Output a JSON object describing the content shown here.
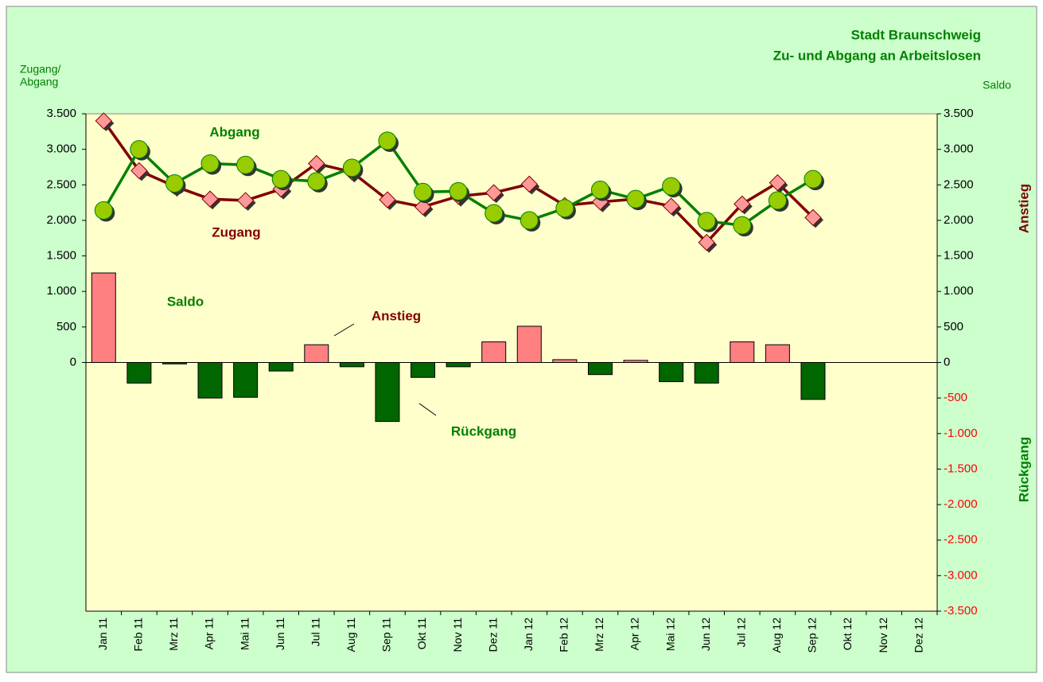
{
  "chart_data": {
    "type": "bar-line",
    "title": [
      "Stadt Braunschweig",
      "Zu- und Abgang an Arbeitslosen"
    ],
    "y_label": [
      "Zugang/",
      "Abgang"
    ],
    "y2_label": "Saldo",
    "categories": [
      "Jan 11",
      "Feb 11",
      "Mrz 11",
      "Apr 11",
      "Mai 11",
      "Jun 11",
      "Jul 11",
      "Aug 11",
      "Sep 11",
      "Okt 11",
      "Nov 11",
      "Dez 11",
      "Jan 12",
      "Feb 12",
      "Mrz 12",
      "Apr 12",
      "Mai 12",
      "Jun 12",
      "Jul 12",
      "Aug 12",
      "Sep 12",
      "Okt 12",
      "Nov 12",
      "Dez 12"
    ],
    "series": [
      {
        "name": "Zugang",
        "type": "line",
        "marker": "diamond",
        "color": "#800000",
        "marker_color": "#ff9999",
        "values": [
          3400,
          2700,
          2480,
          2300,
          2280,
          2440,
          2800,
          2680,
          2290,
          2190,
          2340,
          2390,
          2510,
          2210,
          2260,
          2300,
          2200,
          1690,
          2230,
          2530,
          2040,
          null,
          null,
          null
        ]
      },
      {
        "name": "Abgang",
        "type": "line",
        "marker": "circle",
        "color": "#008000",
        "marker_color": "#99cc00",
        "values": [
          2140,
          3000,
          2520,
          2800,
          2780,
          2580,
          2550,
          2740,
          3120,
          2400,
          2410,
          2100,
          2000,
          2170,
          2430,
          2300,
          2480,
          1990,
          1930,
          2280,
          2580,
          null,
          null,
          null
        ]
      },
      {
        "name": "Saldo",
        "type": "bar",
        "axis": "y2",
        "positive_color": "#ff8080",
        "negative_color": "#006600",
        "values": [
          1260,
          -290,
          -20,
          -500,
          -490,
          -120,
          250,
          -60,
          -830,
          -210,
          -60,
          290,
          510,
          40,
          -170,
          30,
          -270,
          -290,
          290,
          250,
          -520,
          null,
          null,
          null
        ]
      }
    ],
    "annotations": [
      {
        "text": "Abgang",
        "color": "#008000"
      },
      {
        "text": "Zugang",
        "color": "#800000"
      },
      {
        "text": "Saldo",
        "color": "#008000"
      },
      {
        "text": "Anstieg",
        "color": "#800000"
      },
      {
        "text": "Rückgang",
        "color": "#008000"
      }
    ],
    "side_labels": [
      {
        "text": "Anstieg",
        "color": "#800000"
      },
      {
        "text": "Rückgang",
        "color": "#008000"
      }
    ],
    "ylim": [
      -3500,
      3500
    ],
    "yticks": [
      {
        "value": 0,
        "label": "0"
      },
      {
        "value": 500,
        "label": "500"
      },
      {
        "value": 1000,
        "label": "1.000"
      },
      {
        "value": 1500,
        "label": "1.500"
      },
      {
        "value": 2000,
        "label": "2.000"
      },
      {
        "value": 2500,
        "label": "2.500"
      },
      {
        "value": 3000,
        "label": "3.000"
      },
      {
        "value": 3500,
        "label": "3.500"
      }
    ],
    "y2lim": [
      -3500,
      3500
    ],
    "y2ticks": [
      {
        "value": 3500,
        "label": "3.500"
      },
      {
        "value": 3000,
        "label": "3.000"
      },
      {
        "value": 2500,
        "label": "2.500"
      },
      {
        "value": 2000,
        "label": "2.000"
      },
      {
        "value": 1500,
        "label": "1.500"
      },
      {
        "value": 1000,
        "label": "1.000"
      },
      {
        "value": 500,
        "label": "500"
      },
      {
        "value": 0,
        "label": "0"
      },
      {
        "value": -500,
        "label": "-500"
      },
      {
        "value": -1000,
        "label": "-1.000"
      },
      {
        "value": -1500,
        "label": "-1.500"
      },
      {
        "value": -2000,
        "label": "-2.000"
      },
      {
        "value": -2500,
        "label": "-2.500"
      },
      {
        "value": -3000,
        "label": "-3.000"
      },
      {
        "value": -3500,
        "label": "-3.500"
      }
    ],
    "y2_positive_label_color": "#000000",
    "y2_negative_label_color": "#ff0000",
    "background_color": "#ccffcc",
    "plot_color": "#ffffcc"
  }
}
